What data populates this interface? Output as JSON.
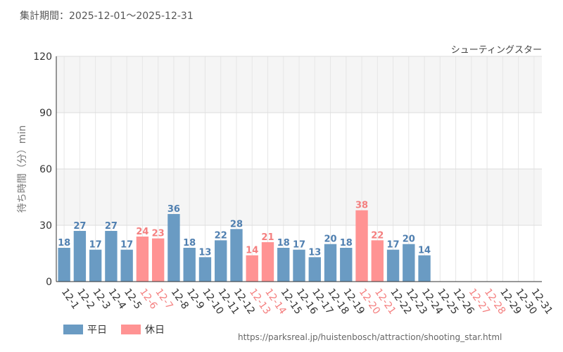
{
  "header": {
    "period": "集計期間：2025-12-01～2025-12-31"
  },
  "chart_data": {
    "type": "bar",
    "title": "シューティングスター",
    "ylabel": "待ち時間（分）min",
    "xlabel": "",
    "ylim": [
      0,
      120
    ],
    "yticks": [
      0,
      30,
      60,
      90,
      120
    ],
    "categories": [
      "12-1",
      "12-2",
      "12-3",
      "12-4",
      "12-5",
      "12-6",
      "12-7",
      "12-8",
      "12-9",
      "12-10",
      "12-11",
      "12-12",
      "12-13",
      "12-14",
      "12-15",
      "12-16",
      "12-17",
      "12-18",
      "12-19",
      "12-20",
      "12-21",
      "12-22",
      "12-23",
      "12-24",
      "12-25",
      "12-26",
      "12-27",
      "12-28",
      "12-29",
      "12-30",
      "12-31"
    ],
    "values": [
      18,
      27,
      17,
      27,
      17,
      24,
      23,
      36,
      18,
      13,
      22,
      28,
      14,
      21,
      18,
      17,
      13,
      20,
      18,
      38,
      22,
      17,
      20,
      14,
      null,
      null,
      null,
      null,
      null,
      null,
      null
    ],
    "holidays": [
      false,
      false,
      false,
      false,
      false,
      true,
      true,
      false,
      false,
      false,
      false,
      false,
      true,
      true,
      false,
      false,
      false,
      false,
      false,
      true,
      true,
      false,
      false,
      false,
      false,
      false,
      true,
      true,
      false,
      false,
      false
    ],
    "legend": [
      {
        "label": "平日",
        "color": "#6a9bc3"
      },
      {
        "label": "休日",
        "color": "#ff9393"
      }
    ],
    "colors": {
      "weekday": "#6a9bc3",
      "holiday": "#ff9393",
      "weekday_text": "#4f7fb0",
      "holiday_text": "#f47f7f"
    }
  },
  "footer": {
    "source": "https://parksreal.jp/huistenbosch/attraction/shooting_star.html"
  }
}
